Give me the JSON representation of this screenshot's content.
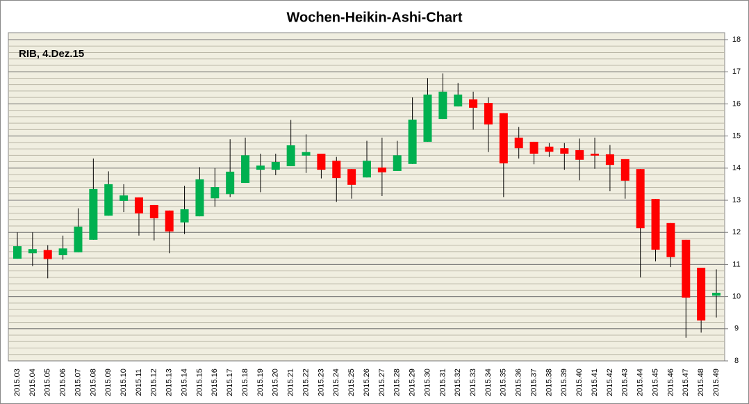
{
  "chart_data": {
    "type": "candlestick",
    "title": "Wochen-Heikin-Ashi-Chart",
    "annotation": "RIB, 4.Dez.15",
    "categories": [
      "2015.03",
      "2015.04",
      "2015.05",
      "2015.06",
      "2015.07",
      "2015.08",
      "2015.09",
      "2015.10",
      "2015.11",
      "2015.12",
      "2015.13",
      "2015.14",
      "2015.15",
      "2015.16",
      "2015.17",
      "2015.18",
      "2015.19",
      "2015.20",
      "2015.21",
      "2015.22",
      "2015.23",
      "2015.24",
      "2015.25",
      "2015.26",
      "2015.27",
      "2015.28",
      "2015.29",
      "2015.30",
      "2015.31",
      "2015.32",
      "2015.33",
      "2015.34",
      "2015.35",
      "2015.36",
      "2015.37",
      "2015.38",
      "2015.39",
      "2015.40",
      "2015.41",
      "2015.42",
      "2015.43",
      "2015.44",
      "2015.45",
      "2015.46",
      "2015.47",
      "2015.48",
      "2015.49"
    ],
    "open": [
      11.18,
      11.35,
      11.45,
      11.29,
      11.38,
      11.77,
      12.52,
      12.98,
      13.09,
      12.85,
      12.68,
      12.31,
      12.5,
      13.06,
      13.19,
      13.54,
      13.95,
      13.95,
      14.06,
      14.39,
      14.45,
      14.23,
      13.97,
      13.71,
      14.02,
      13.91,
      14.13,
      14.82,
      15.53,
      15.92,
      16.14,
      16.03,
      15.71,
      14.95,
      14.82,
      14.67,
      14.62,
      14.56,
      14.45,
      14.43,
      14.28,
      13.97,
      13.04,
      12.29,
      11.77,
      10.9,
      10.03
    ],
    "high": [
      12.0,
      12.0,
      11.6,
      11.9,
      12.75,
      14.3,
      13.9,
      13.5,
      13.09,
      12.85,
      12.68,
      13.45,
      14.03,
      14.0,
      14.9,
      14.95,
      14.45,
      14.45,
      15.5,
      15.05,
      14.45,
      14.35,
      13.97,
      14.85,
      14.95,
      14.85,
      16.2,
      16.8,
      16.95,
      16.65,
      16.38,
      16.2,
      15.71,
      15.28,
      14.82,
      14.78,
      14.78,
      14.92,
      14.95,
      14.72,
      14.28,
      13.97,
      13.04,
      12.29,
      11.77,
      10.9,
      10.85
    ],
    "low": [
      11.18,
      10.95,
      10.57,
      11.15,
      11.38,
      11.77,
      12.52,
      12.63,
      11.9,
      11.75,
      11.35,
      11.95,
      12.5,
      12.8,
      13.1,
      13.54,
      13.25,
      13.78,
      14.06,
      13.85,
      13.68,
      12.95,
      13.05,
      13.71,
      13.13,
      13.91,
      14.13,
      14.82,
      15.53,
      15.92,
      15.2,
      14.5,
      13.1,
      14.3,
      14.12,
      14.35,
      13.95,
      13.62,
      13.98,
      13.28,
      13.05,
      10.6,
      11.1,
      10.92,
      8.72,
      8.88,
      9.35
    ],
    "close": [
      11.57,
      11.48,
      11.17,
      11.5,
      12.18,
      13.35,
      13.5,
      13.15,
      12.59,
      12.44,
      12.03,
      12.72,
      13.65,
      13.41,
      13.89,
      14.4,
      14.08,
      14.19,
      14.71,
      14.5,
      13.95,
      13.69,
      13.48,
      14.23,
      13.87,
      14.4,
      15.51,
      16.29,
      16.38,
      16.29,
      15.88,
      15.36,
      14.15,
      14.62,
      14.45,
      14.51,
      14.45,
      14.26,
      14.39,
      14.1,
      13.61,
      12.13,
      11.46,
      11.23,
      9.97,
      9.26,
      10.12
    ],
    "up_color": "#00b050",
    "down_color": "#ff0000",
    "ylim": [
      8,
      18
    ],
    "yticks": [
      8,
      9,
      10,
      11,
      12,
      13,
      14,
      15,
      16,
      17,
      18
    ],
    "minor_grid_step": 0.2,
    "grid": true,
    "y_axis_side": "right"
  }
}
